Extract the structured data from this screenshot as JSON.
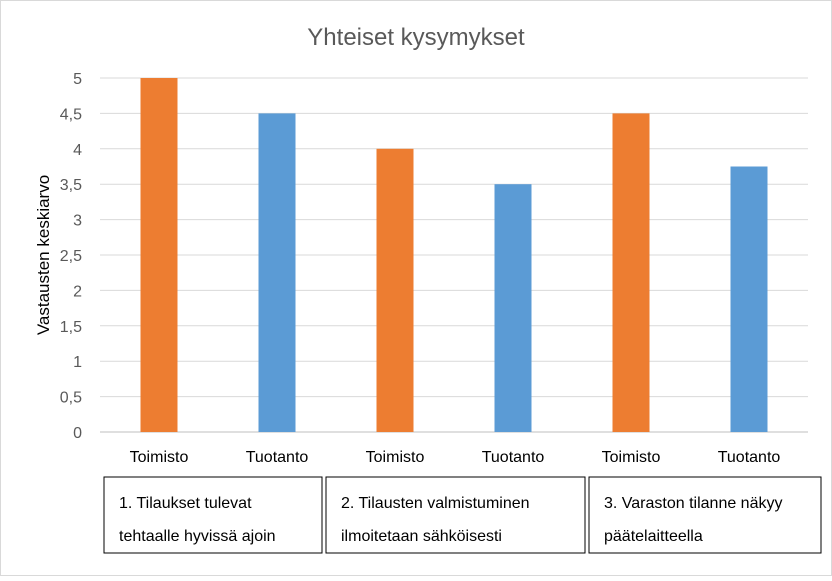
{
  "chart_data": {
    "type": "bar",
    "title": "Yhteiset kysymykset",
    "xlabel": "",
    "ylabel": "Vastausten keskiarvo",
    "ylim": [
      0,
      5
    ],
    "yticks": [
      "0",
      "0,5",
      "1",
      "1,5",
      "2",
      "2,5",
      "3",
      "3,5",
      "4",
      "4,5",
      "5"
    ],
    "grid": true,
    "legend": "none",
    "colors": {
      "Toimisto": "#ed7d31",
      "Tuotanto": "#5b9bd5"
    },
    "categories": [
      "Toimisto",
      "Tuotanto",
      "Toimisto",
      "Tuotanto",
      "Toimisto",
      "Tuotanto"
    ],
    "values": [
      5,
      4.5,
      4,
      3.5,
      4.5,
      3.75
    ],
    "groups": [
      {
        "line1": "1. Tilaukset tulevat",
        "line2": "tehtaalle hyvissä ajoin"
      },
      {
        "line1": "2. Tilausten valmistuminen",
        "line2": "ilmoitetaan sähköisesti"
      },
      {
        "line1": "3. Varaston tilanne näkyy",
        "line2": "päätelaitteella"
      }
    ]
  }
}
